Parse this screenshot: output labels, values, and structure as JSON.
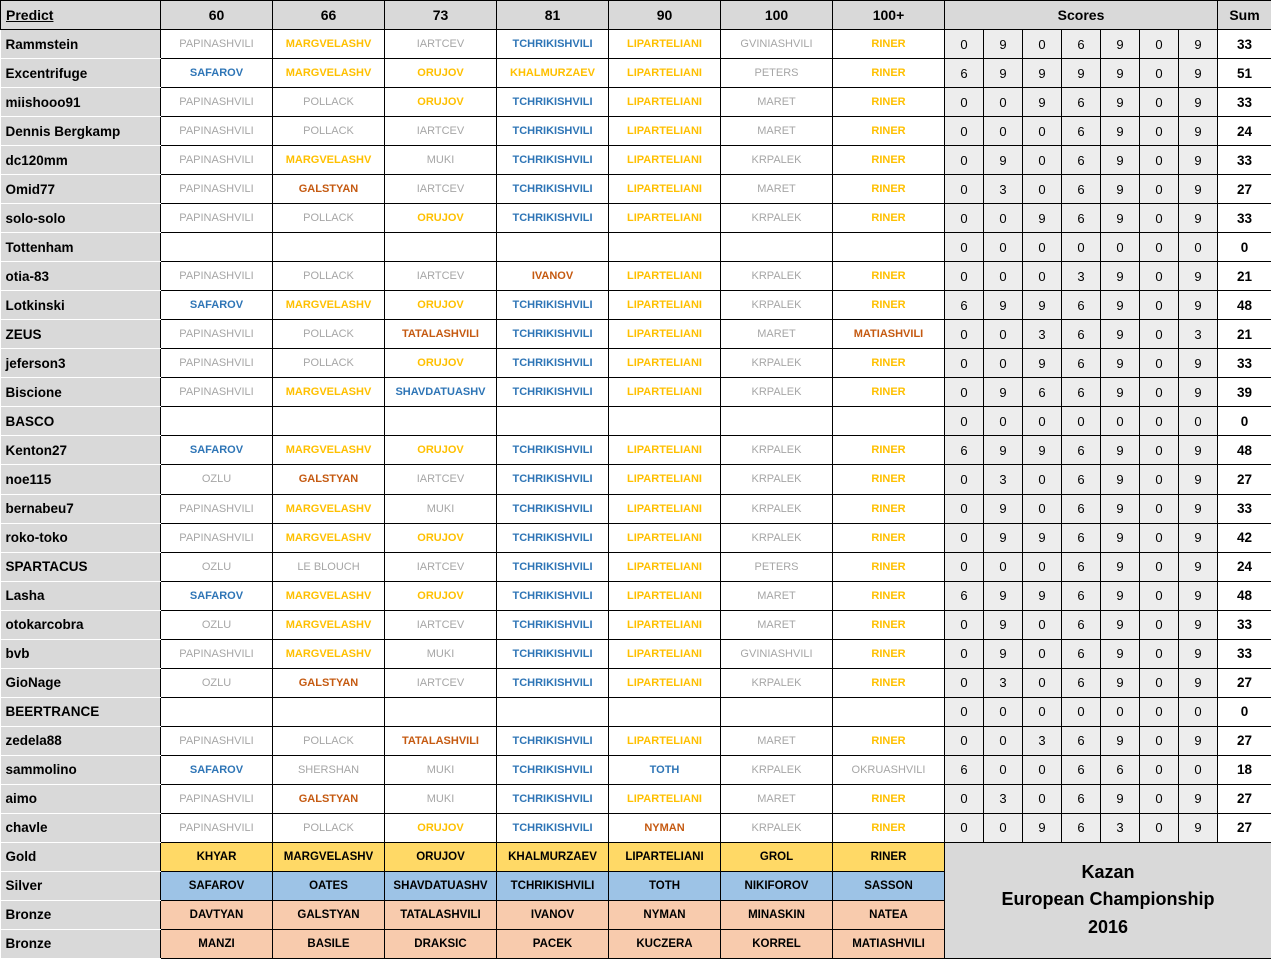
{
  "header": {
    "predict": "Predict",
    "weights": [
      "60",
      "66",
      "73",
      "81",
      "90",
      "100",
      "100+"
    ],
    "scores": "Scores",
    "sum": "Sum"
  },
  "colors": {
    "gold_text": "#FFC000",
    "silver_text": "#2E75B6",
    "bronze_text": "#C55A11",
    "no_medal_text": "#A6A6A6",
    "gold_bg": "#FFD966",
    "silver_bg": "#9DC3E6",
    "bronze_bg": "#F8CBAD",
    "header_bg": "#D9D9D9",
    "score_bg": "#EDEDED"
  },
  "rows": [
    {
      "name": "Rammstein",
      "predictions": [
        {
          "n": "PAPINASHVILI",
          "t": "none"
        },
        {
          "n": "MARGVELASHV",
          "t": "gold"
        },
        {
          "n": "IARTCEV",
          "t": "none"
        },
        {
          "n": "TCHRIKISHVILI",
          "t": "silver"
        },
        {
          "n": "LIPARTELIANI",
          "t": "gold"
        },
        {
          "n": "GVINIASHVILI",
          "t": "none"
        },
        {
          "n": "RINER",
          "t": "gold"
        }
      ],
      "scores": [
        0,
        9,
        0,
        6,
        9,
        0,
        9
      ],
      "sum": 33
    },
    {
      "name": "Excentrifuge",
      "predictions": [
        {
          "n": "SAFAROV",
          "t": "silver"
        },
        {
          "n": "MARGVELASHV",
          "t": "gold"
        },
        {
          "n": "ORUJOV",
          "t": "gold"
        },
        {
          "n": "KHALMURZAEV",
          "t": "gold"
        },
        {
          "n": "LIPARTELIANI",
          "t": "gold"
        },
        {
          "n": "PETERS",
          "t": "none"
        },
        {
          "n": "RINER",
          "t": "gold"
        }
      ],
      "scores": [
        6,
        9,
        9,
        9,
        9,
        0,
        9
      ],
      "sum": 51
    },
    {
      "name": "miishooo91",
      "predictions": [
        {
          "n": "PAPINASHVILI",
          "t": "none"
        },
        {
          "n": "POLLACK",
          "t": "none"
        },
        {
          "n": "ORUJOV",
          "t": "gold"
        },
        {
          "n": "TCHRIKISHVILI",
          "t": "silver"
        },
        {
          "n": "LIPARTELIANI",
          "t": "gold"
        },
        {
          "n": "MARET",
          "t": "none"
        },
        {
          "n": "RINER",
          "t": "gold"
        }
      ],
      "scores": [
        0,
        0,
        9,
        6,
        9,
        0,
        9
      ],
      "sum": 33
    },
    {
      "name": "Dennis Bergkamp",
      "predictions": [
        {
          "n": "PAPINASHVILI",
          "t": "none"
        },
        {
          "n": "POLLACK",
          "t": "none"
        },
        {
          "n": "IARTCEV",
          "t": "none"
        },
        {
          "n": "TCHRIKISHVILI",
          "t": "silver"
        },
        {
          "n": "LIPARTELIANI",
          "t": "gold"
        },
        {
          "n": "MARET",
          "t": "none"
        },
        {
          "n": "RINER",
          "t": "gold"
        }
      ],
      "scores": [
        0,
        0,
        0,
        6,
        9,
        0,
        9
      ],
      "sum": 24
    },
    {
      "name": "dc120mm",
      "predictions": [
        {
          "n": "PAPINASHVILI",
          "t": "none"
        },
        {
          "n": "MARGVELASHV",
          "t": "gold"
        },
        {
          "n": "MUKI",
          "t": "none"
        },
        {
          "n": "TCHRIKISHVILI",
          "t": "silver"
        },
        {
          "n": "LIPARTELIANI",
          "t": "gold"
        },
        {
          "n": "KRPALEK",
          "t": "none"
        },
        {
          "n": "RINER",
          "t": "gold"
        }
      ],
      "scores": [
        0,
        9,
        0,
        6,
        9,
        0,
        9
      ],
      "sum": 33
    },
    {
      "name": "Omid77",
      "predictions": [
        {
          "n": "PAPINASHVILI",
          "t": "none"
        },
        {
          "n": "GALSTYAN",
          "t": "bronze"
        },
        {
          "n": "IARTCEV",
          "t": "none"
        },
        {
          "n": "TCHRIKISHVILI",
          "t": "silver"
        },
        {
          "n": "LIPARTELIANI",
          "t": "gold"
        },
        {
          "n": "MARET",
          "t": "none"
        },
        {
          "n": "RINER",
          "t": "gold"
        }
      ],
      "scores": [
        0,
        3,
        0,
        6,
        9,
        0,
        9
      ],
      "sum": 27
    },
    {
      "name": "solo-solo",
      "predictions": [
        {
          "n": "PAPINASHVILI",
          "t": "none"
        },
        {
          "n": "POLLACK",
          "t": "none"
        },
        {
          "n": "ORUJOV",
          "t": "gold"
        },
        {
          "n": "TCHRIKISHVILI",
          "t": "silver"
        },
        {
          "n": "LIPARTELIANI",
          "t": "gold"
        },
        {
          "n": "KRPALEK",
          "t": "none"
        },
        {
          "n": "RINER",
          "t": "gold"
        }
      ],
      "scores": [
        0,
        0,
        9,
        6,
        9,
        0,
        9
      ],
      "sum": 33
    },
    {
      "name": "Tottenham",
      "predictions": [
        null,
        null,
        null,
        null,
        null,
        null,
        null
      ],
      "scores": [
        0,
        0,
        0,
        0,
        0,
        0,
        0
      ],
      "sum": 0
    },
    {
      "name": "otia-83",
      "predictions": [
        {
          "n": "PAPINASHVILI",
          "t": "none"
        },
        {
          "n": "POLLACK",
          "t": "none"
        },
        {
          "n": "IARTCEV",
          "t": "none"
        },
        {
          "n": "IVANOV",
          "t": "bronze"
        },
        {
          "n": "LIPARTELIANI",
          "t": "gold"
        },
        {
          "n": "KRPALEK",
          "t": "none"
        },
        {
          "n": "RINER",
          "t": "gold"
        }
      ],
      "scores": [
        0,
        0,
        0,
        3,
        9,
        0,
        9
      ],
      "sum": 21
    },
    {
      "name": "Lotkinski",
      "predictions": [
        {
          "n": "SAFAROV",
          "t": "silver"
        },
        {
          "n": "MARGVELASHV",
          "t": "gold"
        },
        {
          "n": "ORUJOV",
          "t": "gold"
        },
        {
          "n": "TCHRIKISHVILI",
          "t": "silver"
        },
        {
          "n": "LIPARTELIANI",
          "t": "gold"
        },
        {
          "n": "KRPALEK",
          "t": "none"
        },
        {
          "n": "RINER",
          "t": "gold"
        }
      ],
      "scores": [
        6,
        9,
        9,
        6,
        9,
        0,
        9
      ],
      "sum": 48
    },
    {
      "name": "ZEUS",
      "predictions": [
        {
          "n": "PAPINASHVILI",
          "t": "none"
        },
        {
          "n": "POLLACK",
          "t": "none"
        },
        {
          "n": "TATALASHVILI",
          "t": "bronze"
        },
        {
          "n": "TCHRIKISHVILI",
          "t": "silver"
        },
        {
          "n": "LIPARTELIANI",
          "t": "gold"
        },
        {
          "n": "MARET",
          "t": "none"
        },
        {
          "n": "MATIASHVILI",
          "t": "bronze"
        }
      ],
      "scores": [
        0,
        0,
        3,
        6,
        9,
        0,
        3
      ],
      "sum": 21
    },
    {
      "name": "jeferson3",
      "predictions": [
        {
          "n": "PAPINASHVILI",
          "t": "none"
        },
        {
          "n": "POLLACK",
          "t": "none"
        },
        {
          "n": "ORUJOV",
          "t": "gold"
        },
        {
          "n": "TCHRIKISHVILI",
          "t": "silver"
        },
        {
          "n": "LIPARTELIANI",
          "t": "gold"
        },
        {
          "n": "KRPALEK",
          "t": "none"
        },
        {
          "n": "RINER",
          "t": "gold"
        }
      ],
      "scores": [
        0,
        0,
        9,
        6,
        9,
        0,
        9
      ],
      "sum": 33
    },
    {
      "name": "Biscione",
      "predictions": [
        {
          "n": "PAPINASHVILI",
          "t": "none"
        },
        {
          "n": "MARGVELASHV",
          "t": "gold"
        },
        {
          "n": "SHAVDATUASHV",
          "t": "silver"
        },
        {
          "n": "TCHRIKISHVILI",
          "t": "silver"
        },
        {
          "n": "LIPARTELIANI",
          "t": "gold"
        },
        {
          "n": "KRPALEK",
          "t": "none"
        },
        {
          "n": "RINER",
          "t": "gold"
        }
      ],
      "scores": [
        0,
        9,
        6,
        6,
        9,
        0,
        9
      ],
      "sum": 39
    },
    {
      "name": "BASCO",
      "predictions": [
        null,
        null,
        null,
        null,
        null,
        null,
        null
      ],
      "scores": [
        0,
        0,
        0,
        0,
        0,
        0,
        0
      ],
      "sum": 0
    },
    {
      "name": "Kenton27",
      "predictions": [
        {
          "n": "SAFAROV",
          "t": "silver"
        },
        {
          "n": "MARGVELASHV",
          "t": "gold"
        },
        {
          "n": "ORUJOV",
          "t": "gold"
        },
        {
          "n": "TCHRIKISHVILI",
          "t": "silver"
        },
        {
          "n": "LIPARTELIANI",
          "t": "gold"
        },
        {
          "n": "KRPALEK",
          "t": "none"
        },
        {
          "n": "RINER",
          "t": "gold"
        }
      ],
      "scores": [
        6,
        9,
        9,
        6,
        9,
        0,
        9
      ],
      "sum": 48
    },
    {
      "name": "noe115",
      "predictions": [
        {
          "n": "OZLU",
          "t": "none"
        },
        {
          "n": "GALSTYAN",
          "t": "bronze"
        },
        {
          "n": "IARTCEV",
          "t": "none"
        },
        {
          "n": "TCHRIKISHVILI",
          "t": "silver"
        },
        {
          "n": "LIPARTELIANI",
          "t": "gold"
        },
        {
          "n": "KRPALEK",
          "t": "none"
        },
        {
          "n": "RINER",
          "t": "gold"
        }
      ],
      "scores": [
        0,
        3,
        0,
        6,
        9,
        0,
        9
      ],
      "sum": 27
    },
    {
      "name": "bernabeu7",
      "predictions": [
        {
          "n": "PAPINASHVILI",
          "t": "none"
        },
        {
          "n": "MARGVELASHV",
          "t": "gold"
        },
        {
          "n": "MUKI",
          "t": "none"
        },
        {
          "n": "TCHRIKISHVILI",
          "t": "silver"
        },
        {
          "n": "LIPARTELIANI",
          "t": "gold"
        },
        {
          "n": "KRPALEK",
          "t": "none"
        },
        {
          "n": "RINER",
          "t": "gold"
        }
      ],
      "scores": [
        0,
        9,
        0,
        6,
        9,
        0,
        9
      ],
      "sum": 33
    },
    {
      "name": "roko-toko",
      "predictions": [
        {
          "n": "PAPINASHVILI",
          "t": "none"
        },
        {
          "n": "MARGVELASHV",
          "t": "gold"
        },
        {
          "n": "ORUJOV",
          "t": "gold"
        },
        {
          "n": "TCHRIKISHVILI",
          "t": "silver"
        },
        {
          "n": "LIPARTELIANI",
          "t": "gold"
        },
        {
          "n": "KRPALEK",
          "t": "none"
        },
        {
          "n": "RINER",
          "t": "gold"
        }
      ],
      "scores": [
        0,
        9,
        9,
        6,
        9,
        0,
        9
      ],
      "sum": 42
    },
    {
      "name": "SPARTACUS",
      "predictions": [
        {
          "n": "OZLU",
          "t": "none"
        },
        {
          "n": "LE BLOUCH",
          "t": "none"
        },
        {
          "n": "IARTCEV",
          "t": "none"
        },
        {
          "n": "TCHRIKISHVILI",
          "t": "silver"
        },
        {
          "n": "LIPARTELIANI",
          "t": "gold"
        },
        {
          "n": "PETERS",
          "t": "none"
        },
        {
          "n": "RINER",
          "t": "gold"
        }
      ],
      "scores": [
        0,
        0,
        0,
        6,
        9,
        0,
        9
      ],
      "sum": 24
    },
    {
      "name": "Lasha",
      "predictions": [
        {
          "n": "SAFAROV",
          "t": "silver"
        },
        {
          "n": "MARGVELASHV",
          "t": "gold"
        },
        {
          "n": "ORUJOV",
          "t": "gold"
        },
        {
          "n": "TCHRIKISHVILI",
          "t": "silver"
        },
        {
          "n": "LIPARTELIANI",
          "t": "gold"
        },
        {
          "n": "MARET",
          "t": "none"
        },
        {
          "n": "RINER",
          "t": "gold"
        }
      ],
      "scores": [
        6,
        9,
        9,
        6,
        9,
        0,
        9
      ],
      "sum": 48
    },
    {
      "name": "otokarcobra",
      "predictions": [
        {
          "n": "OZLU",
          "t": "none"
        },
        {
          "n": "MARGVELASHV",
          "t": "gold"
        },
        {
          "n": "IARTCEV",
          "t": "none"
        },
        {
          "n": "TCHRIKISHVILI",
          "t": "silver"
        },
        {
          "n": "LIPARTELIANI",
          "t": "gold"
        },
        {
          "n": "MARET",
          "t": "none"
        },
        {
          "n": "RINER",
          "t": "gold"
        }
      ],
      "scores": [
        0,
        9,
        0,
        6,
        9,
        0,
        9
      ],
      "sum": 33
    },
    {
      "name": "bvb",
      "predictions": [
        {
          "n": "PAPINASHVILI",
          "t": "none"
        },
        {
          "n": "MARGVELASHV",
          "t": "gold"
        },
        {
          "n": "MUKI",
          "t": "none"
        },
        {
          "n": "TCHRIKISHVILI",
          "t": "silver"
        },
        {
          "n": "LIPARTELIANI",
          "t": "gold"
        },
        {
          "n": "GVINIASHVILI",
          "t": "none"
        },
        {
          "n": "RINER",
          "t": "gold"
        }
      ],
      "scores": [
        0,
        9,
        0,
        6,
        9,
        0,
        9
      ],
      "sum": 33
    },
    {
      "name": "GioNage",
      "predictions": [
        {
          "n": "OZLU",
          "t": "none"
        },
        {
          "n": "GALSTYAN",
          "t": "bronze"
        },
        {
          "n": "IARTCEV",
          "t": "none"
        },
        {
          "n": "TCHRIKISHVILI",
          "t": "silver"
        },
        {
          "n": "LIPARTELIANI",
          "t": "gold"
        },
        {
          "n": "KRPALEK",
          "t": "none"
        },
        {
          "n": "RINER",
          "t": "gold"
        }
      ],
      "scores": [
        0,
        3,
        0,
        6,
        9,
        0,
        9
      ],
      "sum": 27
    },
    {
      "name": "BEERTRANCE",
      "predictions": [
        null,
        null,
        null,
        null,
        null,
        null,
        null
      ],
      "scores": [
        0,
        0,
        0,
        0,
        0,
        0,
        0
      ],
      "sum": 0
    },
    {
      "name": "zedela88",
      "predictions": [
        {
          "n": "PAPINASHVILI",
          "t": "none"
        },
        {
          "n": "POLLACK",
          "t": "none"
        },
        {
          "n": "TATALASHVILI",
          "t": "bronze"
        },
        {
          "n": "TCHRIKISHVILI",
          "t": "silver"
        },
        {
          "n": "LIPARTELIANI",
          "t": "gold"
        },
        {
          "n": "MARET",
          "t": "none"
        },
        {
          "n": "RINER",
          "t": "gold"
        }
      ],
      "scores": [
        0,
        0,
        3,
        6,
        9,
        0,
        9
      ],
      "sum": 27
    },
    {
      "name": "sammolino",
      "predictions": [
        {
          "n": "SAFAROV",
          "t": "silver"
        },
        {
          "n": "SHERSHAN",
          "t": "none"
        },
        {
          "n": "MUKI",
          "t": "none"
        },
        {
          "n": "TCHRIKISHVILI",
          "t": "silver"
        },
        {
          "n": "TOTH",
          "t": "silver"
        },
        {
          "n": "KRPALEK",
          "t": "none"
        },
        {
          "n": "OKRUASHVILI",
          "t": "none"
        }
      ],
      "scores": [
        6,
        0,
        0,
        6,
        6,
        0,
        0
      ],
      "sum": 18
    },
    {
      "name": "aimo",
      "predictions": [
        {
          "n": "PAPINASHVILI",
          "t": "none"
        },
        {
          "n": "GALSTYAN",
          "t": "bronze"
        },
        {
          "n": "MUKI",
          "t": "none"
        },
        {
          "n": "TCHRIKISHVILI",
          "t": "silver"
        },
        {
          "n": "LIPARTELIANI",
          "t": "gold"
        },
        {
          "n": "MARET",
          "t": "none"
        },
        {
          "n": "RINER",
          "t": "gold"
        }
      ],
      "scores": [
        0,
        3,
        0,
        6,
        9,
        0,
        9
      ],
      "sum": 27
    },
    {
      "name": "chavle",
      "predictions": [
        {
          "n": "PAPINASHVILI",
          "t": "none"
        },
        {
          "n": "POLLACK",
          "t": "none"
        },
        {
          "n": "ORUJOV",
          "t": "gold"
        },
        {
          "n": "TCHRIKISHVILI",
          "t": "silver"
        },
        {
          "n": "NYMAN",
          "t": "bronze"
        },
        {
          "n": "KRPALEK",
          "t": "none"
        },
        {
          "n": "RINER",
          "t": "gold"
        }
      ],
      "scores": [
        0,
        0,
        9,
        6,
        3,
        0,
        9
      ],
      "sum": 27
    }
  ],
  "medal_rows": [
    {
      "label": "Gold",
      "tier": "gold",
      "names": [
        "KHYAR",
        "MARGVELASHV",
        "ORUJOV",
        "KHALMURZAEV",
        "LIPARTELIANI",
        "GROL",
        "RINER"
      ]
    },
    {
      "label": "Silver",
      "tier": "silver",
      "names": [
        "SAFAROV",
        "OATES",
        "SHAVDATUASHV",
        "TCHRIKISHVILI",
        "TOTH",
        "NIKIFOROV",
        "SASSON"
      ]
    },
    {
      "label": "Bronze",
      "tier": "bronze",
      "names": [
        "DAVTYAN",
        "GALSTYAN",
        "TATALASHVILI",
        "IVANOV",
        "NYMAN",
        "MINASKIN",
        "NATEA"
      ]
    },
    {
      "label": "Bronze",
      "tier": "bronze",
      "names": [
        "MANZI",
        "BASILE",
        "DRAKSIC",
        "PACEK",
        "KUCZERA",
        "KORREL",
        "MATIASHVILI"
      ]
    }
  ],
  "footer_panel": {
    "line1": "Kazan",
    "line2": "European Championship",
    "line3": "2016"
  }
}
